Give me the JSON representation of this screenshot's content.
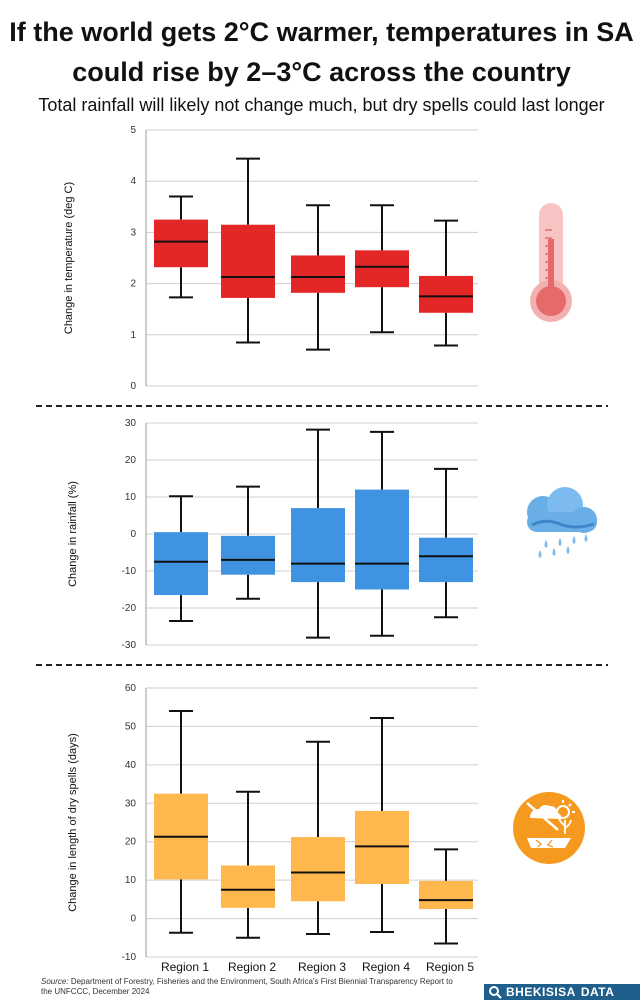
{
  "header": {
    "title_line1": "If the world gets 2°C warmer, temperatures in SA",
    "title_line2": "could rise by 2–3°C across the country",
    "subtitle": "Total rainfall will likely not change much, but dry spells could last longer"
  },
  "chart_data": [
    {
      "type": "box",
      "ylabel": "Change in temperature (deg C)",
      "ylim": [
        0,
        5
      ],
      "yticks": [
        "5",
        "4",
        "3",
        "2",
        "1",
        "0"
      ],
      "color": "#e32726",
      "icon": "thermometer-icon",
      "categories": [
        "Region 1",
        "Region 2",
        "Region 3",
        "Region 4",
        "Region 5"
      ],
      "boxes": [
        {
          "min": 1.73,
          "q1": 2.32,
          "median": 2.82,
          "q3": 3.25,
          "max": 3.7
        },
        {
          "min": 0.85,
          "q1": 1.72,
          "median": 2.13,
          "q3": 3.15,
          "max": 4.44
        },
        {
          "min": 0.71,
          "q1": 1.82,
          "median": 2.13,
          "q3": 2.55,
          "max": 3.53
        },
        {
          "min": 1.05,
          "q1": 1.93,
          "median": 2.33,
          "q3": 2.65,
          "max": 3.53
        },
        {
          "min": 0.79,
          "q1": 1.43,
          "median": 1.75,
          "q3": 2.15,
          "max": 3.23
        }
      ]
    },
    {
      "type": "box",
      "ylabel": "Change in rainfall (%)",
      "ylim": [
        -30,
        30
      ],
      "yticks": [
        "30",
        "20",
        "10",
        "0",
        "-10",
        "-20",
        "-30"
      ],
      "color": "#4093e0",
      "icon": "rain-cloud-icon",
      "categories": [
        "Region 1",
        "Region 2",
        "Region 3",
        "Region 4",
        "Region 5"
      ],
      "boxes": [
        {
          "min": -23.5,
          "q1": -16.5,
          "median": -7.5,
          "q3": 0.5,
          "max": 10.2
        },
        {
          "min": -17.5,
          "q1": -11.0,
          "median": -7.0,
          "q3": -0.5,
          "max": 12.8
        },
        {
          "min": -28.0,
          "q1": -13.0,
          "median": -8.0,
          "q3": 7.0,
          "max": 28.2
        },
        {
          "min": -27.5,
          "q1": -15.0,
          "median": -8.0,
          "q3": 12.0,
          "max": 27.6
        },
        {
          "min": -22.5,
          "q1": -13.0,
          "median": -6.0,
          "q3": -1.0,
          "max": 17.6
        }
      ]
    },
    {
      "type": "box",
      "ylabel": "Change in length of dry spells (days)",
      "ylim": [
        -10,
        60
      ],
      "yticks": [
        "60",
        "50",
        "40",
        "30",
        "20",
        "10",
        "0",
        "-10"
      ],
      "color": "#ffb84d",
      "icon": "drought-icon",
      "categories": [
        "Region 1",
        "Region 2",
        "Region 3",
        "Region 4",
        "Region 5"
      ],
      "boxes": [
        {
          "min": -3.7,
          "q1": 10.2,
          "median": 21.3,
          "q3": 32.5,
          "max": 54.0
        },
        {
          "min": -5.0,
          "q1": 2.8,
          "median": 7.5,
          "q3": 13.8,
          "max": 33.0
        },
        {
          "min": -4.0,
          "q1": 4.5,
          "median": 12.0,
          "q3": 21.2,
          "max": 46.0
        },
        {
          "min": -3.5,
          "q1": 9.0,
          "median": 18.8,
          "q3": 28.0,
          "max": 52.2
        },
        {
          "min": -6.5,
          "q1": 2.5,
          "median": 4.8,
          "q3": 9.8,
          "max": 18.0
        }
      ]
    }
  ],
  "source": {
    "label": "Source:",
    "text": "Department of Forestry, Fisheries and the Environment, South Africa's First Biennial Transparency Report to the UNFCCC, December 2024"
  },
  "brand": {
    "name": "BHEKISISA",
    "suffix": "DATA",
    "color": "#1f5f8b"
  }
}
